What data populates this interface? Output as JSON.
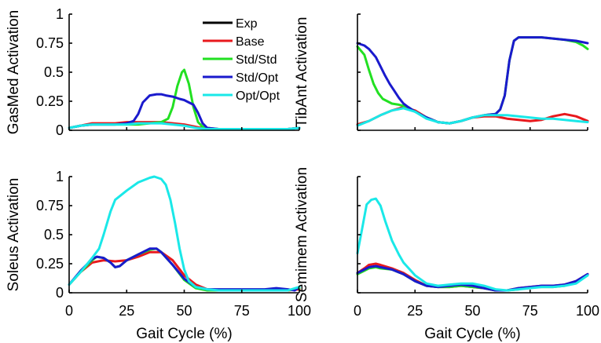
{
  "chart_data": [
    {
      "type": "line",
      "id": "gasmed",
      "title": "",
      "xlabel": "",
      "ylabel": "GasMed Activation",
      "xlim": [
        0,
        100
      ],
      "ylim": [
        0,
        1
      ],
      "xticks": [],
      "xtick_labels": [],
      "yticks": [
        0,
        0.25,
        0.5,
        0.75,
        1
      ],
      "ytick_labels": [
        "0",
        "0.25",
        "0.5",
        "0.75",
        "1"
      ],
      "legend": {
        "location": "top-right",
        "entries": [
          "Exp",
          "Base",
          "Std/Std",
          "Std/Opt",
          "Opt/Opt"
        ]
      },
      "series": [
        {
          "name": "Base",
          "color": "#e8191d",
          "x": [
            0,
            5,
            10,
            15,
            20,
            25,
            30,
            35,
            40,
            45,
            50,
            55,
            60,
            65,
            70,
            75,
            80,
            85,
            90,
            95,
            100
          ],
          "y": [
            0.02,
            0.04,
            0.06,
            0.06,
            0.06,
            0.07,
            0.07,
            0.07,
            0.07,
            0.06,
            0.05,
            0.03,
            0.01,
            0.01,
            0.01,
            0.01,
            0.01,
            0.01,
            0.01,
            0.01,
            0.02
          ]
        },
        {
          "name": "Std/Std",
          "color": "#22e022",
          "x": [
            0,
            5,
            10,
            15,
            20,
            25,
            30,
            35,
            40,
            43,
            45,
            47,
            49,
            50,
            52,
            54,
            56,
            58,
            60,
            65,
            70,
            75,
            80,
            85,
            90,
            95,
            100
          ],
          "y": [
            0.02,
            0.04,
            0.05,
            0.05,
            0.05,
            0.05,
            0.05,
            0.06,
            0.07,
            0.1,
            0.2,
            0.38,
            0.5,
            0.52,
            0.4,
            0.2,
            0.07,
            0.03,
            0.02,
            0.01,
            0.01,
            0.01,
            0.01,
            0.01,
            0.01,
            0.01,
            0.02
          ]
        },
        {
          "name": "Std/Opt",
          "color": "#1a1acd",
          "x": [
            0,
            5,
            10,
            15,
            20,
            25,
            28,
            30,
            32,
            35,
            38,
            40,
            42,
            45,
            48,
            50,
            52,
            54,
            56,
            58,
            60,
            65,
            70,
            75,
            80,
            85,
            90,
            95,
            100
          ],
          "y": [
            0.02,
            0.04,
            0.05,
            0.05,
            0.05,
            0.06,
            0.08,
            0.14,
            0.24,
            0.3,
            0.31,
            0.31,
            0.3,
            0.29,
            0.27,
            0.26,
            0.24,
            0.22,
            0.15,
            0.06,
            0.02,
            0.01,
            0.01,
            0.01,
            0.01,
            0.01,
            0.01,
            0.01,
            0.02
          ]
        },
        {
          "name": "Opt/Opt",
          "color": "#1ae8e8",
          "x": [
            0,
            5,
            10,
            15,
            20,
            25,
            30,
            35,
            40,
            45,
            50,
            55,
            60,
            65,
            70,
            75,
            80,
            85,
            90,
            95,
            100
          ],
          "y": [
            0.02,
            0.04,
            0.05,
            0.05,
            0.05,
            0.05,
            0.06,
            0.06,
            0.06,
            0.05,
            0.04,
            0.02,
            0.01,
            0.01,
            0.01,
            0.01,
            0.01,
            0.01,
            0.01,
            0.01,
            0.02
          ]
        }
      ]
    },
    {
      "type": "line",
      "id": "tibant",
      "title": "",
      "xlabel": "",
      "ylabel": "TibAnt Activation",
      "xlim": [
        0,
        100
      ],
      "ylim": [
        0,
        1
      ],
      "xticks": [],
      "xtick_labels": [],
      "yticks": [],
      "ytick_labels": [],
      "series": [
        {
          "name": "Base",
          "color": "#e8191d",
          "x": [
            0,
            5,
            10,
            15,
            20,
            25,
            30,
            35,
            40,
            45,
            50,
            55,
            60,
            65,
            70,
            75,
            80,
            85,
            90,
            95,
            100
          ],
          "y": [
            0.05,
            0.08,
            0.13,
            0.17,
            0.2,
            0.17,
            0.11,
            0.07,
            0.06,
            0.08,
            0.11,
            0.12,
            0.12,
            0.1,
            0.09,
            0.08,
            0.09,
            0.12,
            0.14,
            0.12,
            0.08
          ]
        },
        {
          "name": "Std/Std",
          "color": "#22e022",
          "x": [
            0,
            3,
            5,
            7,
            9,
            11,
            13,
            15,
            18,
            20,
            22,
            25,
            30,
            35,
            40,
            45,
            50,
            55,
            60,
            62,
            64,
            66,
            68,
            70,
            72,
            75,
            80,
            85,
            90,
            95,
            98,
            100
          ],
          "y": [
            0.72,
            0.65,
            0.52,
            0.4,
            0.32,
            0.27,
            0.25,
            0.23,
            0.22,
            0.21,
            0.2,
            0.16,
            0.11,
            0.07,
            0.06,
            0.08,
            0.11,
            0.13,
            0.14,
            0.18,
            0.3,
            0.6,
            0.77,
            0.8,
            0.8,
            0.8,
            0.8,
            0.79,
            0.78,
            0.76,
            0.73,
            0.7
          ]
        },
        {
          "name": "Std/Opt",
          "color": "#1a1acd",
          "x": [
            0,
            3,
            5,
            8,
            10,
            12,
            14,
            16,
            18,
            20,
            22,
            25,
            30,
            35,
            40,
            45,
            50,
            55,
            60,
            62,
            64,
            66,
            68,
            70,
            72,
            75,
            80,
            85,
            90,
            95,
            100
          ],
          "y": [
            0.75,
            0.73,
            0.7,
            0.63,
            0.55,
            0.47,
            0.4,
            0.34,
            0.28,
            0.23,
            0.2,
            0.16,
            0.11,
            0.07,
            0.06,
            0.08,
            0.11,
            0.13,
            0.14,
            0.18,
            0.3,
            0.6,
            0.77,
            0.8,
            0.8,
            0.8,
            0.8,
            0.79,
            0.78,
            0.77,
            0.75
          ]
        },
        {
          "name": "Opt/Opt",
          "color": "#1ae8e8",
          "x": [
            0,
            5,
            10,
            15,
            20,
            25,
            30,
            35,
            40,
            45,
            50,
            55,
            60,
            65,
            70,
            75,
            80,
            85,
            90,
            95,
            100
          ],
          "y": [
            0.04,
            0.08,
            0.13,
            0.17,
            0.19,
            0.16,
            0.1,
            0.07,
            0.06,
            0.08,
            0.11,
            0.13,
            0.13,
            0.13,
            0.12,
            0.11,
            0.1,
            0.1,
            0.09,
            0.08,
            0.07
          ]
        }
      ]
    },
    {
      "type": "line",
      "id": "soleus",
      "title": "",
      "xlabel": "Gait Cycle (%)",
      "ylabel": "Soleus Activation",
      "xlim": [
        0,
        100
      ],
      "ylim": [
        0,
        1
      ],
      "xticks": [
        0,
        25,
        50,
        75,
        100
      ],
      "xtick_labels": [
        "0",
        "25",
        "50",
        "75",
        "100"
      ],
      "yticks": [
        0,
        0.25,
        0.5,
        0.75,
        1
      ],
      "ytick_labels": [
        "0",
        "0.25",
        "0.5",
        "0.75",
        "1"
      ],
      "series": [
        {
          "name": "Base",
          "color": "#e8191d",
          "x": [
            0,
            5,
            10,
            15,
            20,
            25,
            30,
            35,
            40,
            45,
            50,
            55,
            60,
            65,
            70,
            75,
            80,
            85,
            90,
            95,
            100
          ],
          "y": [
            0.07,
            0.18,
            0.26,
            0.28,
            0.27,
            0.28,
            0.31,
            0.35,
            0.35,
            0.28,
            0.15,
            0.07,
            0.03,
            0.02,
            0.02,
            0.02,
            0.02,
            0.02,
            0.02,
            0.02,
            0.03
          ]
        },
        {
          "name": "Std/Std",
          "color": "#22e022",
          "x": [
            0,
            5,
            10,
            12,
            15,
            18,
            20,
            22,
            25,
            30,
            35,
            38,
            40,
            45,
            50,
            55,
            60,
            65,
            70,
            75,
            80,
            85,
            90,
            95,
            100
          ],
          "y": [
            0.07,
            0.18,
            0.28,
            0.31,
            0.3,
            0.26,
            0.22,
            0.23,
            0.28,
            0.33,
            0.37,
            0.38,
            0.35,
            0.24,
            0.11,
            0.04,
            0.02,
            0.02,
            0.02,
            0.02,
            0.02,
            0.02,
            0.03,
            0.02,
            0.04
          ]
        },
        {
          "name": "Std/Opt",
          "color": "#1a1acd",
          "x": [
            0,
            5,
            10,
            12,
            15,
            18,
            20,
            22,
            25,
            30,
            35,
            38,
            40,
            45,
            50,
            55,
            60,
            65,
            70,
            75,
            80,
            85,
            90,
            95,
            98,
            100
          ],
          "y": [
            0.07,
            0.19,
            0.29,
            0.31,
            0.3,
            0.26,
            0.22,
            0.23,
            0.28,
            0.33,
            0.38,
            0.38,
            0.35,
            0.24,
            0.12,
            0.05,
            0.03,
            0.03,
            0.03,
            0.03,
            0.03,
            0.03,
            0.04,
            0.03,
            0.02,
            0.05
          ]
        },
        {
          "name": "Opt/Opt",
          "color": "#1ae8e8",
          "x": [
            0,
            5,
            10,
            13,
            15,
            18,
            20,
            25,
            30,
            35,
            37,
            40,
            42,
            44,
            46,
            48,
            50,
            52,
            55,
            60,
            65,
            70,
            75,
            80,
            85,
            90,
            95,
            100
          ],
          "y": [
            0.07,
            0.18,
            0.3,
            0.38,
            0.5,
            0.7,
            0.8,
            0.88,
            0.95,
            0.99,
            1.0,
            0.98,
            0.93,
            0.8,
            0.6,
            0.38,
            0.2,
            0.1,
            0.05,
            0.03,
            0.02,
            0.02,
            0.02,
            0.02,
            0.02,
            0.02,
            0.02,
            0.05
          ]
        }
      ]
    },
    {
      "type": "line",
      "id": "semimem",
      "title": "",
      "xlabel": "Gait Cycle (%)",
      "ylabel": "Semimem Activation",
      "xlim": [
        0,
        100
      ],
      "ylim": [
        0,
        1
      ],
      "xticks": [
        0,
        25,
        50,
        75,
        100
      ],
      "xtick_labels": [
        "0",
        "25",
        "50",
        "75",
        "100"
      ],
      "yticks": [],
      "ytick_labels": [],
      "series": [
        {
          "name": "Base",
          "color": "#e8191d",
          "x": [
            0,
            3,
            5,
            8,
            10,
            15,
            20,
            25,
            30,
            35,
            40,
            45,
            50,
            55,
            60,
            65,
            70,
            75,
            80,
            85,
            90,
            95,
            100
          ],
          "y": [
            0.17,
            0.21,
            0.24,
            0.25,
            0.24,
            0.21,
            0.17,
            0.11,
            0.06,
            0.05,
            0.05,
            0.06,
            0.05,
            0.04,
            0.02,
            0.02,
            0.04,
            0.05,
            0.06,
            0.06,
            0.07,
            0.1,
            0.16
          ]
        },
        {
          "name": "Std/Std",
          "color": "#22e022",
          "x": [
            0,
            3,
            5,
            8,
            10,
            15,
            20,
            25,
            30,
            35,
            40,
            45,
            50,
            55,
            60,
            65,
            70,
            75,
            80,
            85,
            90,
            95,
            100
          ],
          "y": [
            0.16,
            0.19,
            0.21,
            0.22,
            0.21,
            0.2,
            0.16,
            0.1,
            0.06,
            0.05,
            0.05,
            0.06,
            0.05,
            0.04,
            0.02,
            0.02,
            0.03,
            0.05,
            0.05,
            0.05,
            0.06,
            0.09,
            0.15
          ]
        },
        {
          "name": "Std/Opt",
          "color": "#1a1acd",
          "x": [
            0,
            3,
            5,
            8,
            10,
            15,
            20,
            25,
            30,
            35,
            40,
            45,
            50,
            55,
            60,
            65,
            70,
            75,
            80,
            85,
            90,
            95,
            100
          ],
          "y": [
            0.17,
            0.2,
            0.22,
            0.23,
            0.22,
            0.2,
            0.16,
            0.1,
            0.06,
            0.05,
            0.06,
            0.07,
            0.06,
            0.04,
            0.02,
            0.02,
            0.04,
            0.05,
            0.06,
            0.06,
            0.07,
            0.1,
            0.16
          ]
        },
        {
          "name": "Opt/Opt",
          "color": "#1ae8e8",
          "x": [
            0,
            2,
            4,
            6,
            8,
            10,
            12,
            15,
            18,
            20,
            25,
            30,
            35,
            40,
            45,
            50,
            55,
            60,
            65,
            70,
            75,
            80,
            85,
            90,
            95,
            100
          ],
          "y": [
            0.34,
            0.55,
            0.76,
            0.8,
            0.81,
            0.75,
            0.62,
            0.45,
            0.33,
            0.26,
            0.15,
            0.08,
            0.06,
            0.07,
            0.08,
            0.08,
            0.06,
            0.03,
            0.02,
            0.03,
            0.04,
            0.05,
            0.05,
            0.06,
            0.08,
            0.15
          ]
        }
      ]
    }
  ]
}
